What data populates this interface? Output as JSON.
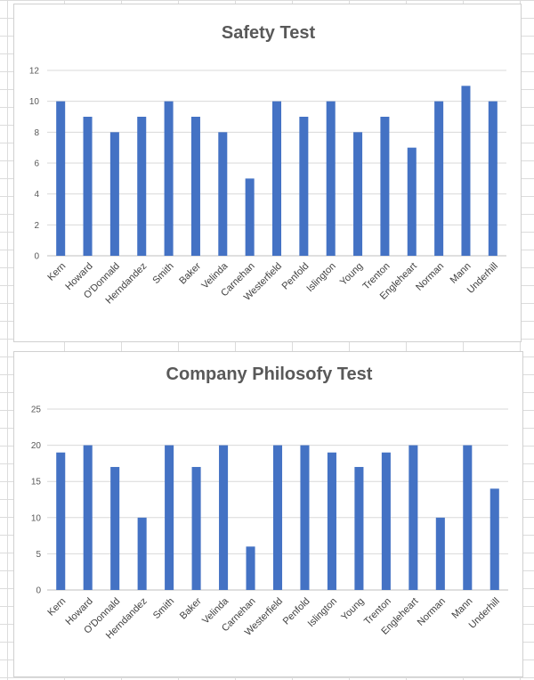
{
  "chart_data": [
    {
      "type": "bar",
      "title": "Safety Test",
      "xlabel": "",
      "ylabel": "",
      "ylim": [
        0,
        12
      ],
      "yticks": [
        0,
        2,
        4,
        6,
        8,
        10,
        12
      ],
      "grid": true,
      "legend": "none",
      "color": "#4472C4",
      "categories": [
        "Kern",
        "Howard",
        "O'Donnald",
        "Herndandez",
        "Smith",
        "Baker",
        "Velinda",
        "Carnehan",
        "Westerfield",
        "Penfold",
        "Islington",
        "Young",
        "Trenton",
        "Engleheart",
        "Norman",
        "Mann",
        "Underhill"
      ],
      "values": [
        10,
        9,
        8,
        9,
        10,
        9,
        8,
        5,
        10,
        9,
        10,
        8,
        9,
        7,
        10,
        11,
        10
      ]
    },
    {
      "type": "bar",
      "title": "Company Philosofy Test",
      "xlabel": "",
      "ylabel": "",
      "ylim": [
        0,
        25
      ],
      "yticks": [
        0,
        5,
        10,
        15,
        20,
        25
      ],
      "grid": true,
      "legend": "none",
      "color": "#4472C4",
      "categories": [
        "Kern",
        "Howard",
        "O'Donnald",
        "Herndandez",
        "Smith",
        "Baker",
        "Velinda",
        "Carnehan",
        "Westerfield",
        "Penfold",
        "Islington",
        "Young",
        "Trenton",
        "Engleheart",
        "Norman",
        "Mann",
        "Underhill"
      ],
      "values": [
        19,
        20,
        17,
        10,
        20,
        17,
        20,
        6,
        20,
        20,
        19,
        17,
        19,
        20,
        10,
        20,
        14
      ]
    }
  ]
}
